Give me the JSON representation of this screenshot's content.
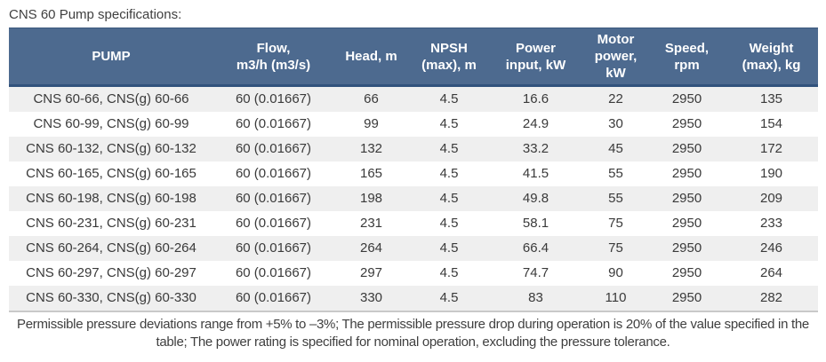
{
  "title": "CNS 60 Pump specifications:",
  "colors": {
    "header_bg": "#4d6a8f",
    "header_text": "#ffffff",
    "header_border": "#31527c",
    "row_stripe": "#efefef",
    "row_plain": "#ffffff",
    "body_text": "#3a3a3a",
    "bottom_border": "#c9c9c9"
  },
  "table": {
    "columns": [
      "PUMP",
      "Flow,\nm3/h (m3/s)",
      "Head, m",
      "NPSH\n(max), m",
      "Power\ninput, kW",
      "Motor\npower,\nkW",
      "Speed,\nrpm",
      "Weight\n(max), kg"
    ],
    "rows": [
      [
        "CNS 60-66, CNS(g) 60-66",
        "60 (0.01667)",
        "66",
        "4.5",
        "16.6",
        "22",
        "2950",
        "135"
      ],
      [
        "CNS 60-99, CNS(g) 60-99",
        "60 (0.01667)",
        "99",
        "4.5",
        "24.9",
        "30",
        "2950",
        "154"
      ],
      [
        "CNS 60-132, CNS(g) 60-132",
        "60 (0.01667)",
        "132",
        "4.5",
        "33.2",
        "45",
        "2950",
        "172"
      ],
      [
        "CNS 60-165, CNS(g) 60-165",
        "60 (0.01667)",
        "165",
        "4.5",
        "41.5",
        "55",
        "2950",
        "190"
      ],
      [
        "CNS 60-198, CNS(g) 60-198",
        "60 (0.01667)",
        "198",
        "4.5",
        "49.8",
        "55",
        "2950",
        "209"
      ],
      [
        "CNS 60-231, CNS(g) 60-231",
        "60 (0.01667)",
        "231",
        "4.5",
        "58.1",
        "75",
        "2950",
        "233"
      ],
      [
        "CNS 60-264, CNS(g) 60-264",
        "60 (0.01667)",
        "264",
        "4.5",
        "66.4",
        "75",
        "2950",
        "246"
      ],
      [
        "CNS 60-297, CNS(g) 60-297",
        "60 (0.01667)",
        "297",
        "4.5",
        "74.7",
        "90",
        "2950",
        "264"
      ],
      [
        "CNS 60-330, CNS(g) 60-330",
        "60 (0.01667)",
        "330",
        "4.5",
        "83",
        "110",
        "2950",
        "282"
      ]
    ]
  },
  "footnote": "Permissible pressure deviations range from +5% to –3%; The permissible pressure drop during operation is 20% of the value specified in the table; The power rating is specified for nominal operation, excluding the pressure tolerance.",
  "chart_data": {
    "type": "table",
    "title": "CNS 60 Pump specifications:",
    "columns": [
      "PUMP",
      "Flow, m3/h (m3/s)",
      "Head, m",
      "NPSH (max), m",
      "Power input, kW",
      "Motor power, kW",
      "Speed, rpm",
      "Weight (max), kg"
    ],
    "rows": [
      [
        "CNS 60-66, CNS(g) 60-66",
        "60 (0.01667)",
        66,
        4.5,
        16.6,
        22,
        2950,
        135
      ],
      [
        "CNS 60-99, CNS(g) 60-99",
        "60 (0.01667)",
        99,
        4.5,
        24.9,
        30,
        2950,
        154
      ],
      [
        "CNS 60-132, CNS(g) 60-132",
        "60 (0.01667)",
        132,
        4.5,
        33.2,
        45,
        2950,
        172
      ],
      [
        "CNS 60-165, CNS(g) 60-165",
        "60 (0.01667)",
        165,
        4.5,
        41.5,
        55,
        2950,
        190
      ],
      [
        "CNS 60-198, CNS(g) 60-198",
        "60 (0.01667)",
        198,
        4.5,
        49.8,
        55,
        2950,
        209
      ],
      [
        "CNS 60-231, CNS(g) 60-231",
        "60 (0.01667)",
        231,
        4.5,
        58.1,
        75,
        2950,
        233
      ],
      [
        "CNS 60-264, CNS(g) 60-264",
        "60 (0.01667)",
        264,
        4.5,
        66.4,
        75,
        2950,
        246
      ],
      [
        "CNS 60-297, CNS(g) 60-297",
        "60 (0.01667)",
        297,
        4.5,
        74.7,
        90,
        2950,
        264
      ],
      [
        "CNS 60-330, CNS(g) 60-330",
        "60 (0.01667)",
        330,
        4.5,
        83,
        110,
        2950,
        282
      ]
    ],
    "note": "Permissible pressure deviations range from +5% to –3%; The permissible pressure drop during operation is 20% of the value specified in the table; The power rating is specified for nominal operation, excluding the pressure tolerance."
  }
}
